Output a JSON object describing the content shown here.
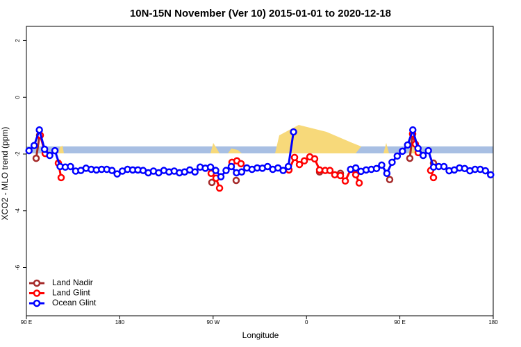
{
  "chart_data": {
    "type": "line",
    "title": "10N-15N November (Ver 10)   2015-01-01 to 2020-12-18",
    "x_label": "Longitude",
    "y_label": "XCO2 - MLO trend (ppm)",
    "xlim": [
      90,
      540
    ],
    "xticks": [
      {
        "value": 90,
        "label": "90 E"
      },
      180,
      {
        "value": 270,
        "label": "90 W"
      },
      {
        "value": 360,
        "label": "0"
      },
      {
        "value": 450,
        "label": "90 E"
      },
      {
        "value": 540,
        "label": "180"
      }
    ],
    "ylim": [
      -7.7,
      2.5
    ],
    "yticks": [
      2,
      0,
      -2,
      -4,
      -6
    ],
    "legend": "bottom-left",
    "series": [
      {
        "name": "Land Nadir",
        "color": "#a52a2a",
        "x": [
          99.4,
          102.7,
          110,
          268.8,
          280,
          292.2,
          330,
          372.6,
          392.7,
          420,
          440.2,
          450,
          459.6,
          462.3,
          470,
          482.4
        ],
        "values": [
          -2.15,
          -1.34,
          null,
          -3.0,
          null,
          -2.93,
          null,
          -2.63,
          -2.68,
          null,
          -2.9,
          null,
          -2.15,
          -1.29,
          null,
          -2.32
        ]
      },
      {
        "name": "Land Glint",
        "color": "#ff0000",
        "x": [
          103.4,
          108.1,
          115,
          120.8,
          123.5,
          200,
          268.1,
          272.8,
          276.2,
          282,
          288.2,
          292.9,
          296.9,
          320,
          343.1,
          348.5,
          353.2,
          357.9,
          363.2,
          367.9,
          372.6,
          378,
          382.6,
          387.3,
          392.7,
          397.4,
          402.7,
          407.5,
          410.8,
          430,
          462.3,
          465,
          467.7,
          472,
          479.7,
          482.4
        ],
        "values": [
          -1.34,
          -1.98,
          null,
          -2.32,
          -2.83,
          null,
          -2.68,
          -2.85,
          -3.2,
          null,
          -2.29,
          -2.24,
          -2.34,
          null,
          -2.56,
          -2.12,
          -2.37,
          -2.24,
          -2.1,
          -2.17,
          -2.56,
          -2.58,
          -2.58,
          -2.73,
          -2.76,
          -2.95,
          -2.54,
          -2.73,
          -3.02,
          null,
          -1.29,
          -1.65,
          -1.95,
          null,
          -2.58,
          -2.83
        ]
      },
      {
        "name": "Ocean Glint",
        "color": "#0000ff",
        "x": [
          92.5,
          97.5,
          102.5,
          107.5,
          112.5,
          117.5,
          122.5,
          127.5,
          132.5,
          137.5,
          142.5,
          147.5,
          152.5,
          157.5,
          162.5,
          167.5,
          172.5,
          177.5,
          182.5,
          187.5,
          192.5,
          197.5,
          202.5,
          207.5,
          212.5,
          217.5,
          222.5,
          227.5,
          232.5,
          237.5,
          242.5,
          247.5,
          252.5,
          257.5,
          262.5,
          267.5,
          272.5,
          277.5,
          282.5,
          287.5,
          292.5,
          297.5,
          302.5,
          307.5,
          312.5,
          317.5,
          322.5,
          327.5,
          332.5,
          337.5,
          342.5,
          347.5,
          400,
          402.5,
          407.5,
          412.5,
          417.5,
          422.5,
          427.5,
          432.5,
          437.5,
          442.5,
          447.5,
          452.5,
          457.5,
          462.5,
          467.5,
          472.5,
          477.5,
          482.5,
          487.5,
          492.5,
          497.5,
          502.5,
          507.5,
          512.5,
          517.5,
          522.5,
          527.5,
          532.5,
          537.5
        ],
        "values": [
          -1.88,
          -1.7,
          -1.15,
          -1.83,
          -2.05,
          -1.88,
          -2.44,
          -2.46,
          -2.44,
          -2.6,
          -2.58,
          -2.5,
          -2.54,
          -2.56,
          -2.54,
          -2.54,
          -2.58,
          -2.7,
          -2.6,
          -2.54,
          -2.56,
          -2.56,
          -2.58,
          -2.66,
          -2.6,
          -2.66,
          -2.58,
          -2.63,
          -2.6,
          -2.66,
          -2.63,
          -2.56,
          -2.63,
          -2.46,
          -2.5,
          -2.46,
          -2.58,
          -2.8,
          -2.58,
          -2.44,
          -2.66,
          -2.63,
          -2.49,
          -2.54,
          -2.49,
          -2.5,
          -2.44,
          -2.54,
          -2.49,
          -2.58,
          -2.44,
          -1.22,
          null,
          -2.54,
          -2.49,
          -2.61,
          -2.56,
          -2.54,
          -2.51,
          -2.39,
          -2.68,
          -2.29,
          -2.07,
          -1.9,
          -1.68,
          -1.15,
          -1.8,
          -2.05,
          -1.88,
          -2.46,
          -2.44,
          -2.44,
          -2.59,
          -2.56,
          -2.49,
          -2.51,
          -2.59,
          -2.54,
          -2.54,
          -2.59,
          -2.73
        ]
      }
    ]
  }
}
